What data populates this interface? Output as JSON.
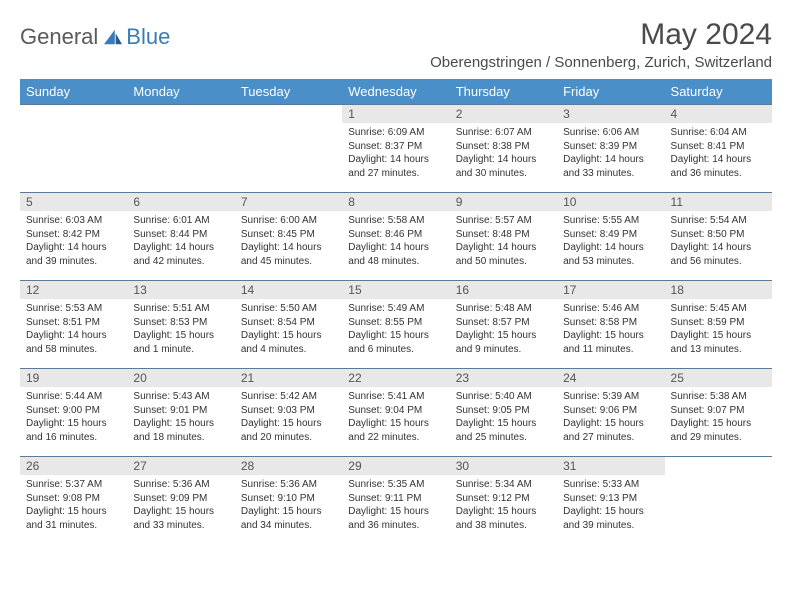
{
  "brand": {
    "part1": "General",
    "part2": "Blue"
  },
  "title": "May 2024",
  "location": "Oberengstringen / Sonnenberg, Zurich, Switzerland",
  "colors": {
    "header_bg": "#4a8fc7",
    "header_text": "#ffffff",
    "daynum_bg": "#e8e8e8",
    "row_border": "#5a7a9a",
    "brand_gray": "#5a5a5a",
    "brand_blue": "#3a7ab8"
  },
  "weekdays": [
    "Sunday",
    "Monday",
    "Tuesday",
    "Wednesday",
    "Thursday",
    "Friday",
    "Saturday"
  ],
  "weeks": [
    [
      null,
      null,
      null,
      {
        "n": "1",
        "sr": "6:09 AM",
        "ss": "8:37 PM",
        "dl": "14 hours and 27 minutes."
      },
      {
        "n": "2",
        "sr": "6:07 AM",
        "ss": "8:38 PM",
        "dl": "14 hours and 30 minutes."
      },
      {
        "n": "3",
        "sr": "6:06 AM",
        "ss": "8:39 PM",
        "dl": "14 hours and 33 minutes."
      },
      {
        "n": "4",
        "sr": "6:04 AM",
        "ss": "8:41 PM",
        "dl": "14 hours and 36 minutes."
      }
    ],
    [
      {
        "n": "5",
        "sr": "6:03 AM",
        "ss": "8:42 PM",
        "dl": "14 hours and 39 minutes."
      },
      {
        "n": "6",
        "sr": "6:01 AM",
        "ss": "8:44 PM",
        "dl": "14 hours and 42 minutes."
      },
      {
        "n": "7",
        "sr": "6:00 AM",
        "ss": "8:45 PM",
        "dl": "14 hours and 45 minutes."
      },
      {
        "n": "8",
        "sr": "5:58 AM",
        "ss": "8:46 PM",
        "dl": "14 hours and 48 minutes."
      },
      {
        "n": "9",
        "sr": "5:57 AM",
        "ss": "8:48 PM",
        "dl": "14 hours and 50 minutes."
      },
      {
        "n": "10",
        "sr": "5:55 AM",
        "ss": "8:49 PM",
        "dl": "14 hours and 53 minutes."
      },
      {
        "n": "11",
        "sr": "5:54 AM",
        "ss": "8:50 PM",
        "dl": "14 hours and 56 minutes."
      }
    ],
    [
      {
        "n": "12",
        "sr": "5:53 AM",
        "ss": "8:51 PM",
        "dl": "14 hours and 58 minutes."
      },
      {
        "n": "13",
        "sr": "5:51 AM",
        "ss": "8:53 PM",
        "dl": "15 hours and 1 minute."
      },
      {
        "n": "14",
        "sr": "5:50 AM",
        "ss": "8:54 PM",
        "dl": "15 hours and 4 minutes."
      },
      {
        "n": "15",
        "sr": "5:49 AM",
        "ss": "8:55 PM",
        "dl": "15 hours and 6 minutes."
      },
      {
        "n": "16",
        "sr": "5:48 AM",
        "ss": "8:57 PM",
        "dl": "15 hours and 9 minutes."
      },
      {
        "n": "17",
        "sr": "5:46 AM",
        "ss": "8:58 PM",
        "dl": "15 hours and 11 minutes."
      },
      {
        "n": "18",
        "sr": "5:45 AM",
        "ss": "8:59 PM",
        "dl": "15 hours and 13 minutes."
      }
    ],
    [
      {
        "n": "19",
        "sr": "5:44 AM",
        "ss": "9:00 PM",
        "dl": "15 hours and 16 minutes."
      },
      {
        "n": "20",
        "sr": "5:43 AM",
        "ss": "9:01 PM",
        "dl": "15 hours and 18 minutes."
      },
      {
        "n": "21",
        "sr": "5:42 AM",
        "ss": "9:03 PM",
        "dl": "15 hours and 20 minutes."
      },
      {
        "n": "22",
        "sr": "5:41 AM",
        "ss": "9:04 PM",
        "dl": "15 hours and 22 minutes."
      },
      {
        "n": "23",
        "sr": "5:40 AM",
        "ss": "9:05 PM",
        "dl": "15 hours and 25 minutes."
      },
      {
        "n": "24",
        "sr": "5:39 AM",
        "ss": "9:06 PM",
        "dl": "15 hours and 27 minutes."
      },
      {
        "n": "25",
        "sr": "5:38 AM",
        "ss": "9:07 PM",
        "dl": "15 hours and 29 minutes."
      }
    ],
    [
      {
        "n": "26",
        "sr": "5:37 AM",
        "ss": "9:08 PM",
        "dl": "15 hours and 31 minutes."
      },
      {
        "n": "27",
        "sr": "5:36 AM",
        "ss": "9:09 PM",
        "dl": "15 hours and 33 minutes."
      },
      {
        "n": "28",
        "sr": "5:36 AM",
        "ss": "9:10 PM",
        "dl": "15 hours and 34 minutes."
      },
      {
        "n": "29",
        "sr": "5:35 AM",
        "ss": "9:11 PM",
        "dl": "15 hours and 36 minutes."
      },
      {
        "n": "30",
        "sr": "5:34 AM",
        "ss": "9:12 PM",
        "dl": "15 hours and 38 minutes."
      },
      {
        "n": "31",
        "sr": "5:33 AM",
        "ss": "9:13 PM",
        "dl": "15 hours and 39 minutes."
      },
      null
    ]
  ],
  "labels": {
    "sunrise": "Sunrise:",
    "sunset": "Sunset:",
    "daylight": "Daylight:"
  }
}
